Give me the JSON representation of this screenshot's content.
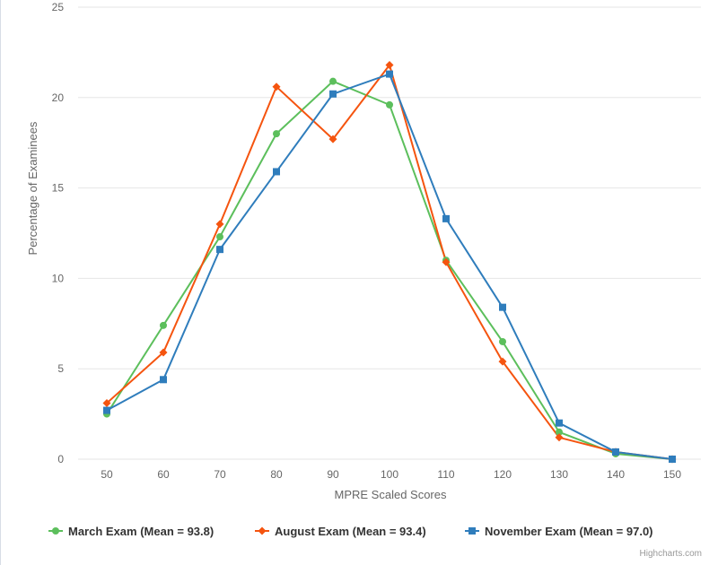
{
  "chart_data": {
    "type": "line",
    "title": "",
    "xlabel": "MPRE Scaled Scores",
    "ylabel": "Percentage of Examinees",
    "xlim": [
      50,
      150
    ],
    "ylim": [
      0,
      25
    ],
    "x": [
      50,
      60,
      70,
      80,
      90,
      100,
      110,
      120,
      130,
      140,
      150
    ],
    "x_ticks": [
      "50",
      "60",
      "70",
      "80",
      "90",
      "100",
      "110",
      "120",
      "130",
      "140",
      "150"
    ],
    "y_ticks": [
      "0",
      "5",
      "10",
      "15",
      "20",
      "25"
    ],
    "grid": true,
    "legend_position": "bottom",
    "series": [
      {
        "name": "March Exam (Mean = 93.8)",
        "color": "#5cbf5c",
        "marker": "circle",
        "values": [
          2.5,
          7.4,
          12.3,
          18.0,
          20.9,
          19.6,
          11.0,
          6.5,
          1.5,
          0.3,
          0.0
        ]
      },
      {
        "name": "August Exam (Mean = 93.4)",
        "color": "#f5540f",
        "marker": "diamond",
        "values": [
          3.1,
          5.9,
          13.0,
          20.6,
          17.7,
          21.8,
          10.9,
          5.4,
          1.2,
          0.4,
          0.0
        ]
      },
      {
        "name": "November Exam (Mean = 97.0)",
        "color": "#2f7dbc",
        "marker": "square",
        "values": [
          2.7,
          4.4,
          11.6,
          15.9,
          20.2,
          21.3,
          13.3,
          8.4,
          2.0,
          0.4,
          0.0
        ]
      }
    ]
  },
  "credits": "Highcharts.com",
  "colors": {
    "grid": "#e6e6e6",
    "axis_text": "#666666",
    "legend_text": "#333333"
  }
}
